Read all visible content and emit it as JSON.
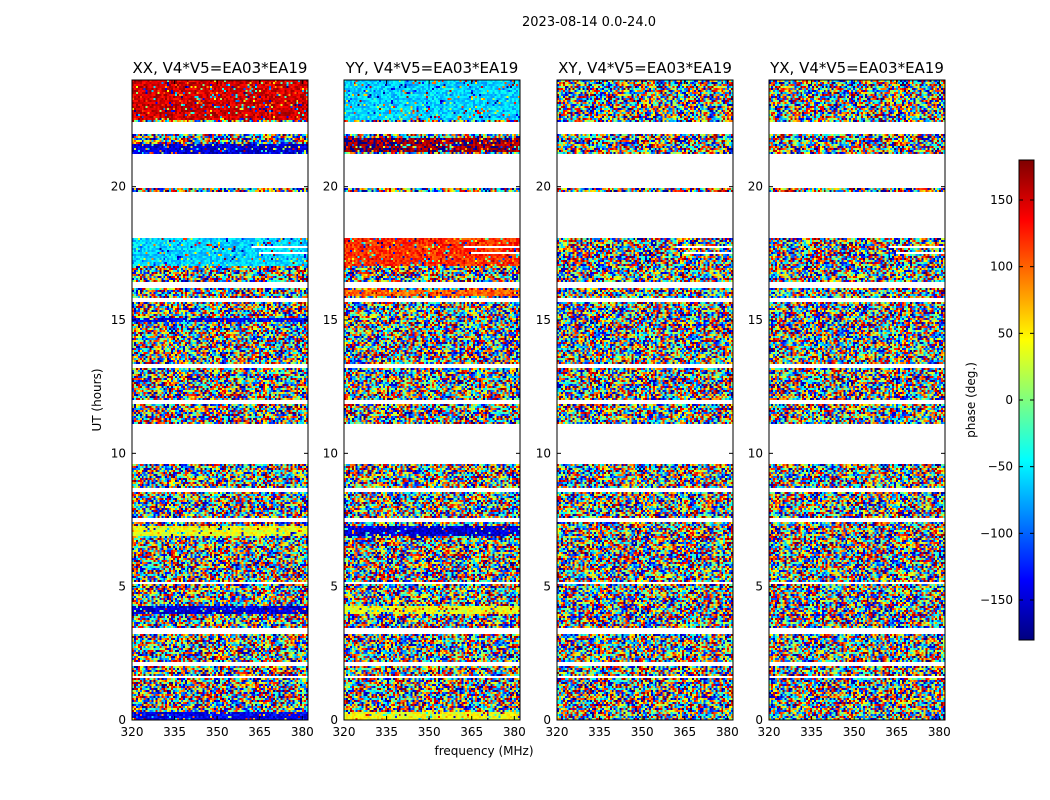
{
  "chart_data": {
    "type": "heatmap",
    "suptitle": "2023-08-14 0.0-24.0",
    "xlabel": "frequency (MHz)",
    "ylabel": "UT (hours)",
    "xlim": [
      320,
      382
    ],
    "ylim": [
      0,
      24
    ],
    "xticks": [
      320,
      335,
      350,
      365,
      380
    ],
    "yticks": [
      0,
      5,
      10,
      15,
      20
    ],
    "colorbar": {
      "label": "phase (deg.)",
      "range": [
        -180,
        180
      ],
      "ticks": [
        150,
        100,
        50,
        0,
        -50,
        -100,
        -150
      ],
      "tick_labels": [
        "150",
        "100",
        "50",
        "0",
        "−50",
        "−100",
        "−150"
      ],
      "cmap": "jet",
      "colors": [
        "#00007f",
        "#0000ff",
        "#007fff",
        "#00ffff",
        "#7fff7f",
        "#ffff00",
        "#ff7f00",
        "#ff0000",
        "#7f0000"
      ]
    },
    "panels": [
      {
        "title": "XX, V4*V5=EA03*EA19",
        "coherent": [
          {
            "from": 22.5,
            "to": 24.0,
            "phase": 150
          },
          {
            "from": 21.2,
            "to": 21.6,
            "phase": -150
          },
          {
            "from": 17.0,
            "to": 18.1,
            "phase": -60
          },
          {
            "from": 14.9,
            "to": 15.1,
            "phase": -140
          },
          {
            "from": 6.9,
            "to": 7.3,
            "phase": 40
          },
          {
            "from": 4.0,
            "to": 4.3,
            "phase": -150
          },
          {
            "from": 0.0,
            "to": 0.3,
            "phase": -140
          }
        ]
      },
      {
        "title": "YY, V4*V5=EA03*EA19",
        "coherent": [
          {
            "from": 22.5,
            "to": 24.0,
            "phase": -60
          },
          {
            "from": 21.3,
            "to": 21.8,
            "phase": 170
          },
          {
            "from": 17.0,
            "to": 18.1,
            "phase": 120
          },
          {
            "from": 15.9,
            "to": 16.1,
            "phase": 100
          },
          {
            "from": 6.9,
            "to": 7.3,
            "phase": -150
          },
          {
            "from": 4.0,
            "to": 4.3,
            "phase": 40
          },
          {
            "from": 0.0,
            "to": 0.3,
            "phase": 40
          }
        ]
      },
      {
        "title": "XY, V4*V5=EA03*EA19",
        "coherent": []
      },
      {
        "title": "YX, V4*V5=EA03*EA19",
        "coherent": []
      }
    ],
    "flagged_time_ranges": [
      [
        9.6,
        11.1
      ],
      [
        18.1,
        19.8
      ],
      [
        19.95,
        21.2
      ],
      [
        22.0,
        22.4
      ],
      [
        15.7,
        15.85
      ],
      [
        16.2,
        16.4
      ],
      [
        13.2,
        13.35
      ],
      [
        11.85,
        12.0
      ],
      [
        8.55,
        8.7
      ],
      [
        7.45,
        7.6
      ],
      [
        5.1,
        5.2
      ],
      [
        3.25,
        3.45
      ],
      [
        2.0,
        2.15
      ],
      [
        1.55,
        1.65
      ]
    ],
    "flagged_freq_ranges": [
      [
        365,
        382,
        17.45,
        17.55
      ],
      [
        362,
        382,
        17.7,
        17.8
      ]
    ]
  }
}
